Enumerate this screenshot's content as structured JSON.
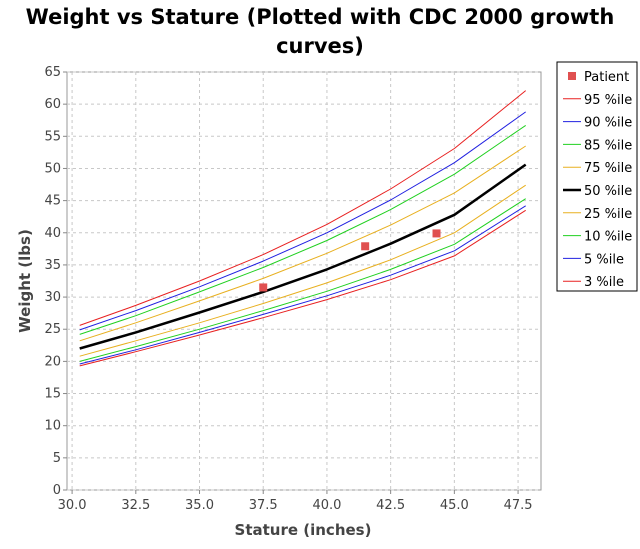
{
  "chart_data": {
    "type": "line",
    "title_lines": [
      "Weight vs Stature (Plotted with CDC 2000 growth",
      "curves)"
    ],
    "xlabel": "Stature (inches)",
    "ylabel": "Weight (lbs)",
    "xlim": [
      29.8,
      48.4
    ],
    "ylim": [
      0,
      65
    ],
    "xticks": [
      "30.0",
      "32.5",
      "35.0",
      "37.5",
      "40.0",
      "42.5",
      "45.0",
      "47.5"
    ],
    "yticks": [
      "0",
      "5",
      "10",
      "15",
      "20",
      "25",
      "30",
      "35",
      "40",
      "45",
      "50",
      "55",
      "60",
      "65"
    ],
    "grid": true,
    "legend_position": "right",
    "patient": {
      "name": "Patient",
      "color": "#e05050",
      "points": [
        {
          "x": 37.5,
          "y": 31.5
        },
        {
          "x": 41.5,
          "y": 37.9
        },
        {
          "x": 44.3,
          "y": 39.9
        }
      ]
    },
    "x": [
      30.3,
      32.5,
      35.0,
      37.5,
      40.0,
      42.5,
      45.0,
      47.8
    ],
    "series": [
      {
        "name": "95 %ile",
        "color": "#e82020",
        "width": 1,
        "values": [
          25.6,
          28.7,
          32.5,
          36.6,
          41.3,
          46.8,
          53.1,
          62.1
        ]
      },
      {
        "name": "90 %ile",
        "color": "#2020e0",
        "width": 1,
        "values": [
          24.9,
          27.9,
          31.6,
          35.6,
          40.0,
          45.1,
          50.9,
          58.8
        ]
      },
      {
        "name": "85 %ile",
        "color": "#20d020",
        "width": 1,
        "values": [
          24.2,
          27.1,
          30.8,
          34.6,
          38.8,
          43.6,
          49.1,
          56.7
        ]
      },
      {
        "name": "75 %ile",
        "color": "#e8b020",
        "width": 1,
        "values": [
          23.2,
          26.0,
          29.4,
          32.9,
          36.8,
          41.2,
          46.2,
          53.5
        ]
      },
      {
        "name": "50 %ile",
        "color": "#000000",
        "width": 2.5,
        "values": [
          22.0,
          24.5,
          27.6,
          30.8,
          34.3,
          38.3,
          42.8,
          50.6
        ]
      },
      {
        "name": "25 %ile",
        "color": "#e8b020",
        "width": 1,
        "values": [
          20.8,
          23.2,
          26.0,
          29.0,
          32.2,
          35.8,
          40.0,
          47.4
        ]
      },
      {
        "name": "10 %ile",
        "color": "#20d020",
        "width": 1,
        "values": [
          20.0,
          22.3,
          25.0,
          27.9,
          30.9,
          34.3,
          38.2,
          45.3
        ]
      },
      {
        "name": "5 %ile",
        "color": "#2020e0",
        "width": 1,
        "values": [
          19.6,
          21.8,
          24.5,
          27.3,
          30.2,
          33.4,
          37.2,
          44.2
        ]
      },
      {
        "name": "3 %ile",
        "color": "#e82020",
        "width": 1,
        "values": [
          19.3,
          21.5,
          24.1,
          26.8,
          29.6,
          32.7,
          36.4,
          43.5
        ]
      }
    ]
  }
}
